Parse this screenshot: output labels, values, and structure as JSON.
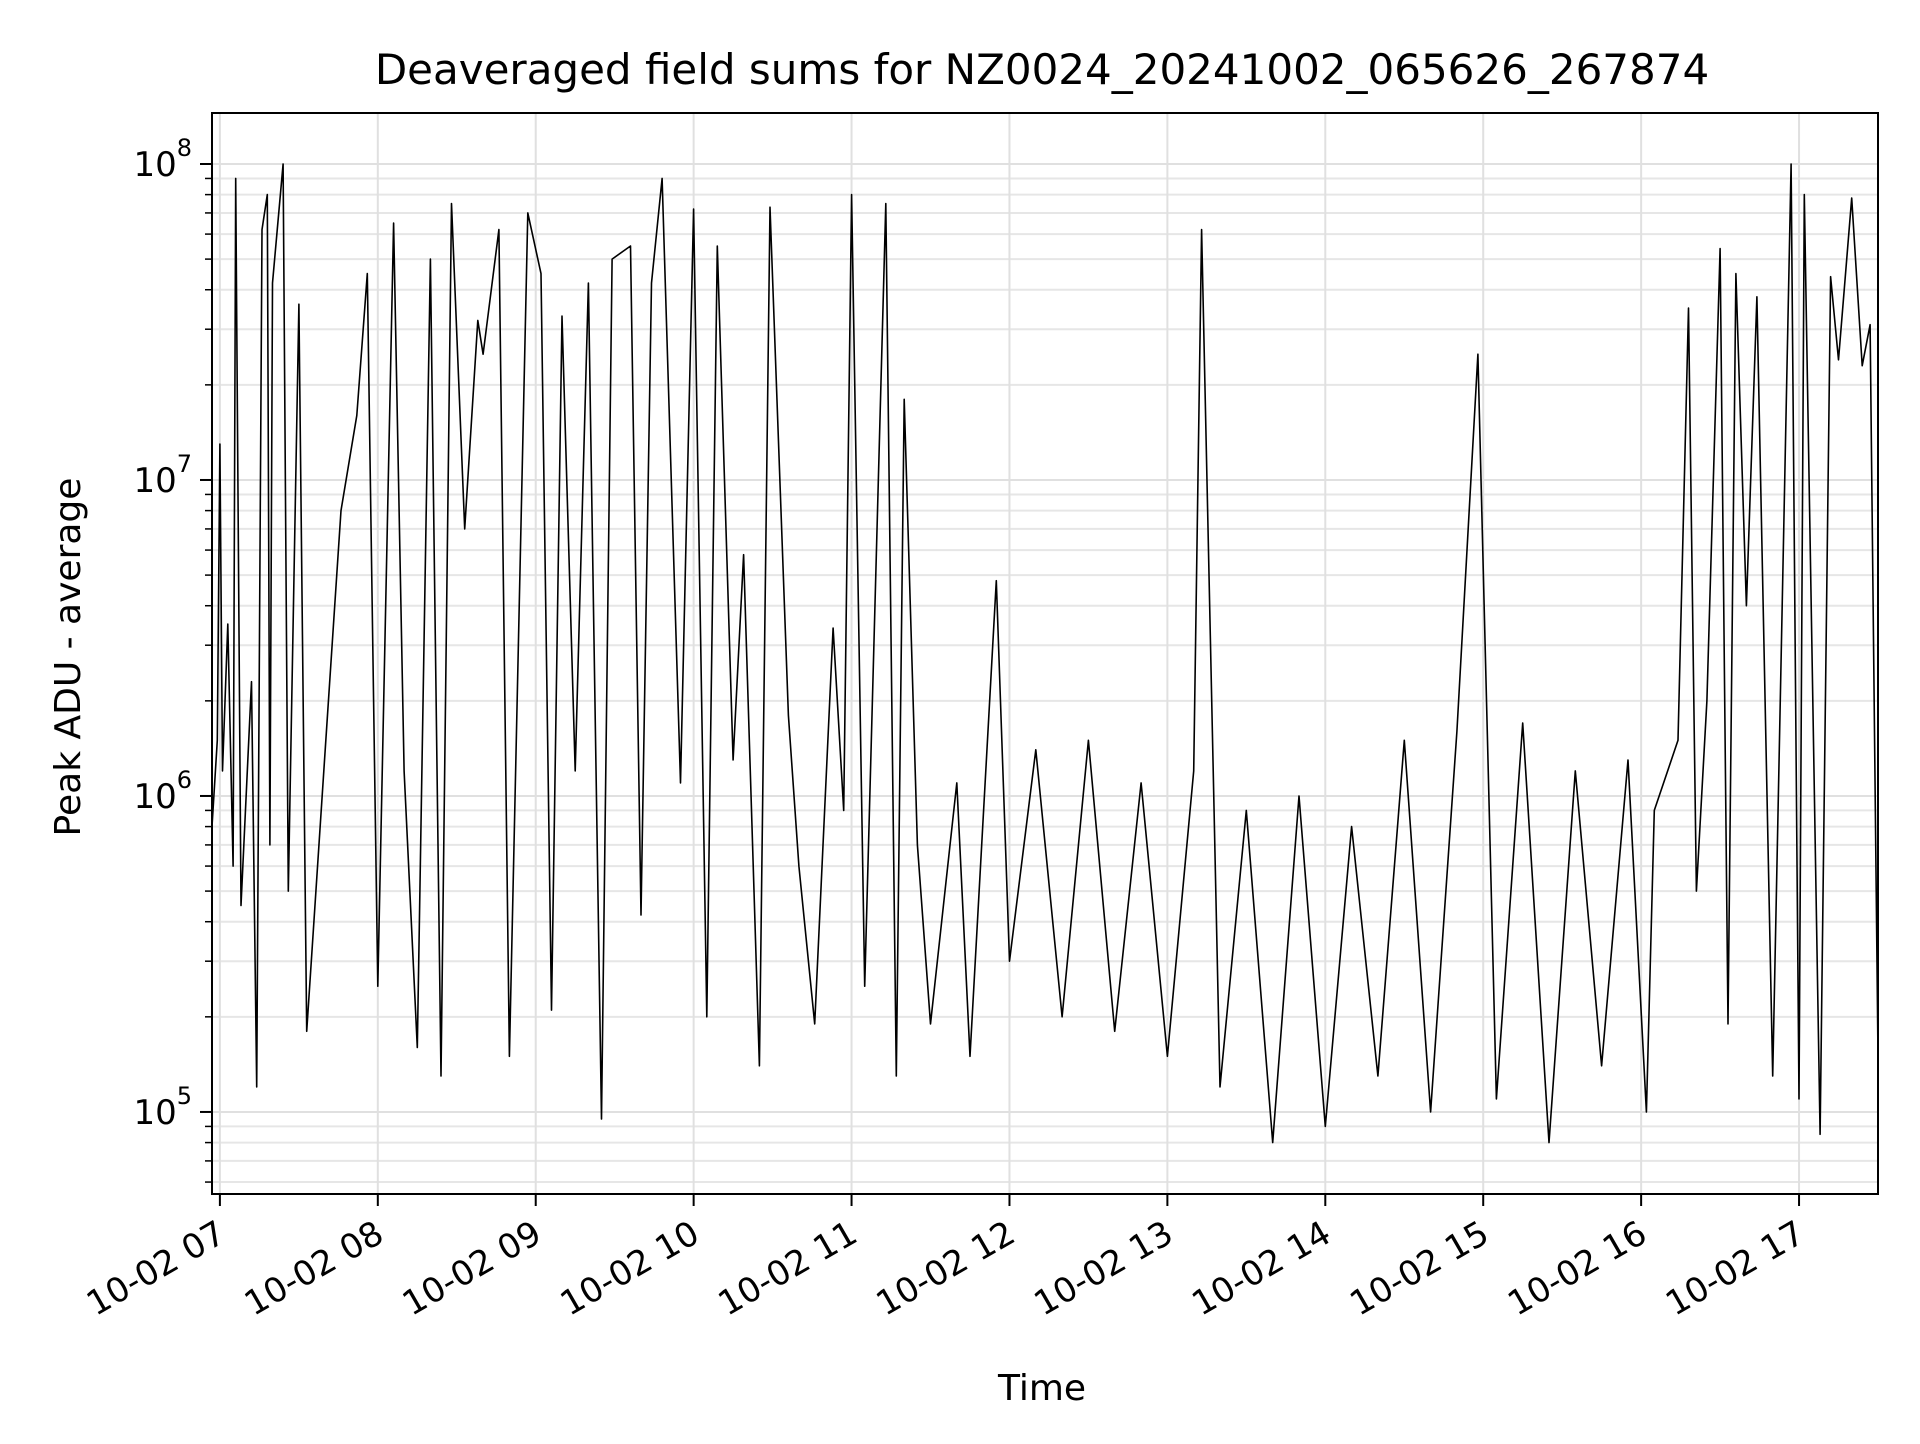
{
  "chart_data": {
    "type": "line",
    "title": "Deaveraged field sums for NZ0024_20241002_065626_267874",
    "xlabel": "Time",
    "ylabel": "Peak ADU - average",
    "yscale": "log",
    "ylim": [
      55000,
      145000000
    ],
    "xlim": [
      "2024-10-02 06:57",
      "2024-10-02 17:30"
    ],
    "grid": true,
    "line_color": "#000000",
    "x_ticks": [
      {
        "value": "2024-10-02 07:00",
        "label": "10-02 07"
      },
      {
        "value": "2024-10-02 08:00",
        "label": "10-02 08"
      },
      {
        "value": "2024-10-02 09:00",
        "label": "10-02 09"
      },
      {
        "value": "2024-10-02 10:00",
        "label": "10-02 10"
      },
      {
        "value": "2024-10-02 11:00",
        "label": "10-02 11"
      },
      {
        "value": "2024-10-02 12:00",
        "label": "10-02 12"
      },
      {
        "value": "2024-10-02 13:00",
        "label": "10-02 13"
      },
      {
        "value": "2024-10-02 14:00",
        "label": "10-02 14"
      },
      {
        "value": "2024-10-02 15:00",
        "label": "10-02 15"
      },
      {
        "value": "2024-10-02 16:00",
        "label": "10-02 16"
      },
      {
        "value": "2024-10-02 17:00",
        "label": "10-02 17"
      }
    ],
    "y_ticks": [
      {
        "value": 100000,
        "base": "10",
        "exp": "5"
      },
      {
        "value": 1000000,
        "base": "10",
        "exp": "6"
      },
      {
        "value": 10000000,
        "base": "10",
        "exp": "7"
      },
      {
        "value": 100000000,
        "base": "10",
        "exp": "8"
      }
    ],
    "series": [
      {
        "points": [
          [
            "2024-10-02 06:57",
            800000
          ],
          [
            "2024-10-02 06:59",
            1500000
          ],
          [
            "2024-10-02 07:00",
            13000000
          ],
          [
            "2024-10-02 07:01",
            1200000
          ],
          [
            "2024-10-02 07:03",
            3500000
          ],
          [
            "2024-10-02 07:05",
            600000
          ],
          [
            "2024-10-02 07:06",
            90000000
          ],
          [
            "2024-10-02 07:08",
            450000
          ],
          [
            "2024-10-02 07:12",
            2300000
          ],
          [
            "2024-10-02 07:14",
            120000
          ],
          [
            "2024-10-02 07:16",
            62000000
          ],
          [
            "2024-10-02 07:18",
            80000000
          ],
          [
            "2024-10-02 07:19",
            700000
          ],
          [
            "2024-10-02 07:20",
            42000000
          ],
          [
            "2024-10-02 07:24",
            100000000
          ],
          [
            "2024-10-02 07:26",
            500000
          ],
          [
            "2024-10-02 07:30",
            36000000
          ],
          [
            "2024-10-02 07:33",
            180000
          ],
          [
            "2024-10-02 07:40",
            1400000
          ],
          [
            "2024-10-02 07:46",
            8000000
          ],
          [
            "2024-10-02 07:52",
            16000000
          ],
          [
            "2024-10-02 07:56",
            45000000
          ],
          [
            "2024-10-02 08:00",
            250000
          ],
          [
            "2024-10-02 08:06",
            65000000
          ],
          [
            "2024-10-02 08:10",
            1200000
          ],
          [
            "2024-10-02 08:15",
            160000
          ],
          [
            "2024-10-02 08:20",
            50000000
          ],
          [
            "2024-10-02 08:24",
            130000
          ],
          [
            "2024-10-02 08:28",
            75000000
          ],
          [
            "2024-10-02 08:33",
            7000000
          ],
          [
            "2024-10-02 08:38",
            32000000
          ],
          [
            "2024-10-02 08:40",
            25000000
          ],
          [
            "2024-10-02 08:46",
            62000000
          ],
          [
            "2024-10-02 08:50",
            150000
          ],
          [
            "2024-10-02 08:57",
            70000000
          ],
          [
            "2024-10-02 09:02",
            45000000
          ],
          [
            "2024-10-02 09:06",
            210000
          ],
          [
            "2024-10-02 09:10",
            33000000
          ],
          [
            "2024-10-02 09:15",
            1200000
          ],
          [
            "2024-10-02 09:20",
            42000000
          ],
          [
            "2024-10-02 09:25",
            95000
          ],
          [
            "2024-10-02 09:29",
            50000000
          ],
          [
            "2024-10-02 09:36",
            55000000
          ],
          [
            "2024-10-02 09:40",
            420000
          ],
          [
            "2024-10-02 09:44",
            42000000
          ],
          [
            "2024-10-02 09:48",
            90000000
          ],
          [
            "2024-10-02 09:55",
            1100000
          ],
          [
            "2024-10-02 10:00",
            72000000
          ],
          [
            "2024-10-02 10:05",
            200000
          ],
          [
            "2024-10-02 10:09",
            55000000
          ],
          [
            "2024-10-02 10:15",
            1300000
          ],
          [
            "2024-10-02 10:19",
            5800000
          ],
          [
            "2024-10-02 10:25",
            140000
          ],
          [
            "2024-10-02 10:29",
            73000000
          ],
          [
            "2024-10-02 10:36",
            1800000
          ],
          [
            "2024-10-02 10:40",
            600000
          ],
          [
            "2024-10-02 10:46",
            190000
          ],
          [
            "2024-10-02 10:53",
            3400000
          ],
          [
            "2024-10-02 10:57",
            900000
          ],
          [
            "2024-10-02 11:00",
            80000000
          ],
          [
            "2024-10-02 11:05",
            250000
          ],
          [
            "2024-10-02 11:13",
            75000000
          ],
          [
            "2024-10-02 11:17",
            130000
          ],
          [
            "2024-10-02 11:20",
            18000000
          ],
          [
            "2024-10-02 11:25",
            700000
          ],
          [
            "2024-10-02 11:30",
            190000
          ],
          [
            "2024-10-02 11:40",
            1100000
          ],
          [
            "2024-10-02 11:45",
            150000
          ],
          [
            "2024-10-02 11:55",
            4800000
          ],
          [
            "2024-10-02 12:00",
            300000
          ],
          [
            "2024-10-02 12:10",
            1400000
          ],
          [
            "2024-10-02 12:20",
            200000
          ],
          [
            "2024-10-02 12:30",
            1500000
          ],
          [
            "2024-10-02 12:40",
            180000
          ],
          [
            "2024-10-02 12:50",
            1100000
          ],
          [
            "2024-10-02 13:00",
            150000
          ],
          [
            "2024-10-02 13:10",
            1200000
          ],
          [
            "2024-10-02 13:13",
            62000000
          ],
          [
            "2024-10-02 13:20",
            120000
          ],
          [
            "2024-10-02 13:30",
            900000
          ],
          [
            "2024-10-02 13:40",
            80000
          ],
          [
            "2024-10-02 13:50",
            1000000
          ],
          [
            "2024-10-02 14:00",
            90000
          ],
          [
            "2024-10-02 14:10",
            800000
          ],
          [
            "2024-10-02 14:20",
            130000
          ],
          [
            "2024-10-02 14:30",
            1500000
          ],
          [
            "2024-10-02 14:40",
            100000
          ],
          [
            "2024-10-02 14:50",
            1600000
          ],
          [
            "2024-10-02 14:58",
            25000000
          ],
          [
            "2024-10-02 15:05",
            110000
          ],
          [
            "2024-10-02 15:15",
            1700000
          ],
          [
            "2024-10-02 15:25",
            80000
          ],
          [
            "2024-10-02 15:35",
            1200000
          ],
          [
            "2024-10-02 15:45",
            140000
          ],
          [
            "2024-10-02 15:55",
            1300000
          ],
          [
            "2024-10-02 16:02",
            100000
          ],
          [
            "2024-10-02 16:05",
            900000
          ],
          [
            "2024-10-02 16:14",
            1500000
          ],
          [
            "2024-10-02 16:18",
            35000000
          ],
          [
            "2024-10-02 16:21",
            500000
          ],
          [
            "2024-10-02 16:25",
            2000000
          ],
          [
            "2024-10-02 16:30",
            54000000
          ],
          [
            "2024-10-02 16:33",
            190000
          ],
          [
            "2024-10-02 16:36",
            45000000
          ],
          [
            "2024-10-02 16:40",
            4000000
          ],
          [
            "2024-10-02 16:44",
            38000000
          ],
          [
            "2024-10-02 16:50",
            130000
          ],
          [
            "2024-10-02 16:57",
            100000000
          ],
          [
            "2024-10-02 17:00",
            110000
          ],
          [
            "2024-10-02 17:02",
            80000000
          ],
          [
            "2024-10-02 17:08",
            85000
          ],
          [
            "2024-10-02 17:12",
            44000000
          ],
          [
            "2024-10-02 17:15",
            24000000
          ],
          [
            "2024-10-02 17:20",
            78000000
          ],
          [
            "2024-10-02 17:24",
            23000000
          ],
          [
            "2024-10-02 17:27",
            31000000
          ],
          [
            "2024-10-02 17:30",
            150000
          ]
        ]
      }
    ]
  }
}
